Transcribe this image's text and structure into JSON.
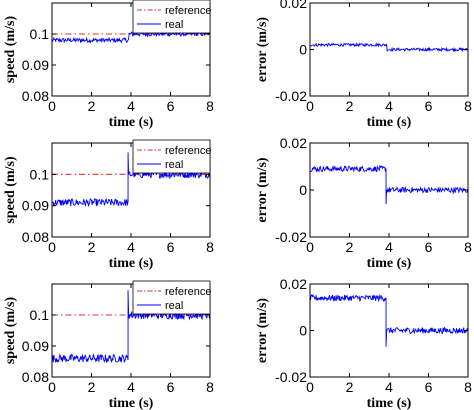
{
  "chart_data": [
    {
      "type": "line",
      "xlabel": "time (s)",
      "ylabel": "speed (m/s)",
      "xlim": [
        0,
        8
      ],
      "ylim": [
        0.08,
        0.11
      ],
      "xticks": [
        "0",
        "2",
        "4",
        "6",
        "8"
      ],
      "yticks": [
        "0.08",
        "0.09",
        "0.1"
      ],
      "legend": {
        "placement": "top-right",
        "entries": [
          "reference",
          "real"
        ]
      },
      "series": [
        {
          "name": "reference",
          "color": "#e03030",
          "style": "dash-dot",
          "x": [
            0,
            4,
            8
          ],
          "y": [
            0.1,
            0.1,
            0.1
          ]
        },
        {
          "name": "real",
          "color": "#0000ff",
          "style": "solid",
          "x": [
            0,
            3.9,
            3.9,
            8
          ],
          "y": [
            0.098,
            0.098,
            0.1,
            0.1
          ],
          "noise": 0.0007
        }
      ]
    },
    {
      "type": "line",
      "xlabel": "time (s)",
      "ylabel": "error (m/s)",
      "xlim": [
        0,
        8
      ],
      "ylim": [
        -0.02,
        0.02
      ],
      "xticks": [
        "0",
        "2",
        "4",
        "6",
        "8"
      ],
      "yticks": [
        "-0.02",
        "0",
        "0.02"
      ],
      "series": [
        {
          "name": "",
          "color": "#0000ff",
          "style": "solid",
          "x": [
            0,
            3.9,
            3.9,
            8
          ],
          "y": [
            0.002,
            0.002,
            0,
            0
          ],
          "noise": 0.0006
        }
      ]
    },
    {
      "type": "line",
      "xlabel": "time (s)",
      "ylabel": "speed (m/s)",
      "xlim": [
        0,
        8
      ],
      "ylim": [
        0.08,
        0.11
      ],
      "xticks": [
        "0",
        "2",
        "4",
        "6",
        "8"
      ],
      "yticks": [
        "0.08",
        "0.09",
        "0.1"
      ],
      "legend": {
        "placement": "top-right",
        "entries": [
          "reference",
          "real"
        ]
      },
      "series": [
        {
          "name": "reference",
          "color": "#e03030",
          "style": "dash-dot",
          "x": [
            0,
            4,
            8
          ],
          "y": [
            0.1,
            0.1,
            0.1
          ]
        },
        {
          "name": "real",
          "color": "#0000ff",
          "style": "solid",
          "x": [
            0,
            3.85,
            3.85,
            8
          ],
          "y": [
            0.091,
            0.091,
            0.1,
            0.1
          ],
          "noise": 0.0012,
          "spike": 0.107
        }
      ]
    },
    {
      "type": "line",
      "xlabel": "time (s)",
      "ylabel": "error (m/s)",
      "xlim": [
        0,
        8
      ],
      "ylim": [
        -0.02,
        0.02
      ],
      "xticks": [
        "0",
        "2",
        "4",
        "6",
        "8"
      ],
      "yticks": [
        "-0.02",
        "0",
        "0.02"
      ],
      "series": [
        {
          "name": "",
          "color": "#0000ff",
          "style": "solid",
          "x": [
            0,
            3.85,
            3.85,
            8
          ],
          "y": [
            0.009,
            0.009,
            0,
            0
          ],
          "noise": 0.0012,
          "spike": -0.006
        }
      ]
    },
    {
      "type": "line",
      "xlabel": "time (s)",
      "ylabel": "speed (m/s)",
      "xlim": [
        0,
        8
      ],
      "ylim": [
        0.08,
        0.11
      ],
      "xticks": [
        "0",
        "2",
        "4",
        "6",
        "8"
      ],
      "yticks": [
        "0.08",
        "0.09",
        "0.1"
      ],
      "legend": {
        "placement": "top-right",
        "entries": [
          "reference",
          "real"
        ]
      },
      "series": [
        {
          "name": "reference",
          "color": "#e03030",
          "style": "dash-dot",
          "x": [
            0,
            4,
            8
          ],
          "y": [
            0.1,
            0.1,
            0.1
          ]
        },
        {
          "name": "real",
          "color": "#0000ff",
          "style": "solid",
          "x": [
            0,
            3.85,
            3.85,
            8
          ],
          "y": [
            0.086,
            0.086,
            0.1,
            0.1
          ],
          "noise": 0.0013,
          "spike": 0.108
        }
      ]
    },
    {
      "type": "line",
      "xlabel": "time (s)",
      "ylabel": "error (m/s)",
      "xlim": [
        0,
        8
      ],
      "ylim": [
        -0.02,
        0.02
      ],
      "xticks": [
        "0",
        "2",
        "4",
        "6",
        "8"
      ],
      "yticks": [
        "-0.02",
        "0",
        "0.02"
      ],
      "series": [
        {
          "name": "",
          "color": "#0000ff",
          "style": "solid",
          "x": [
            0,
            3.85,
            3.85,
            8
          ],
          "y": [
            0.014,
            0.014,
            0,
            0
          ],
          "noise": 0.0013,
          "spike": -0.007
        }
      ]
    }
  ]
}
